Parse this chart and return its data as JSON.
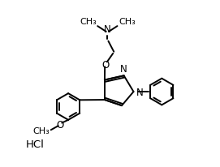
{
  "background_color": "#ffffff",
  "line_color": "#000000",
  "line_width": 1.4,
  "font_size": 8.5,
  "fig_width": 2.71,
  "fig_height": 2.07,
  "dpi": 100,
  "xlim": [
    0,
    10
  ],
  "ylim": [
    0,
    7.8
  ]
}
